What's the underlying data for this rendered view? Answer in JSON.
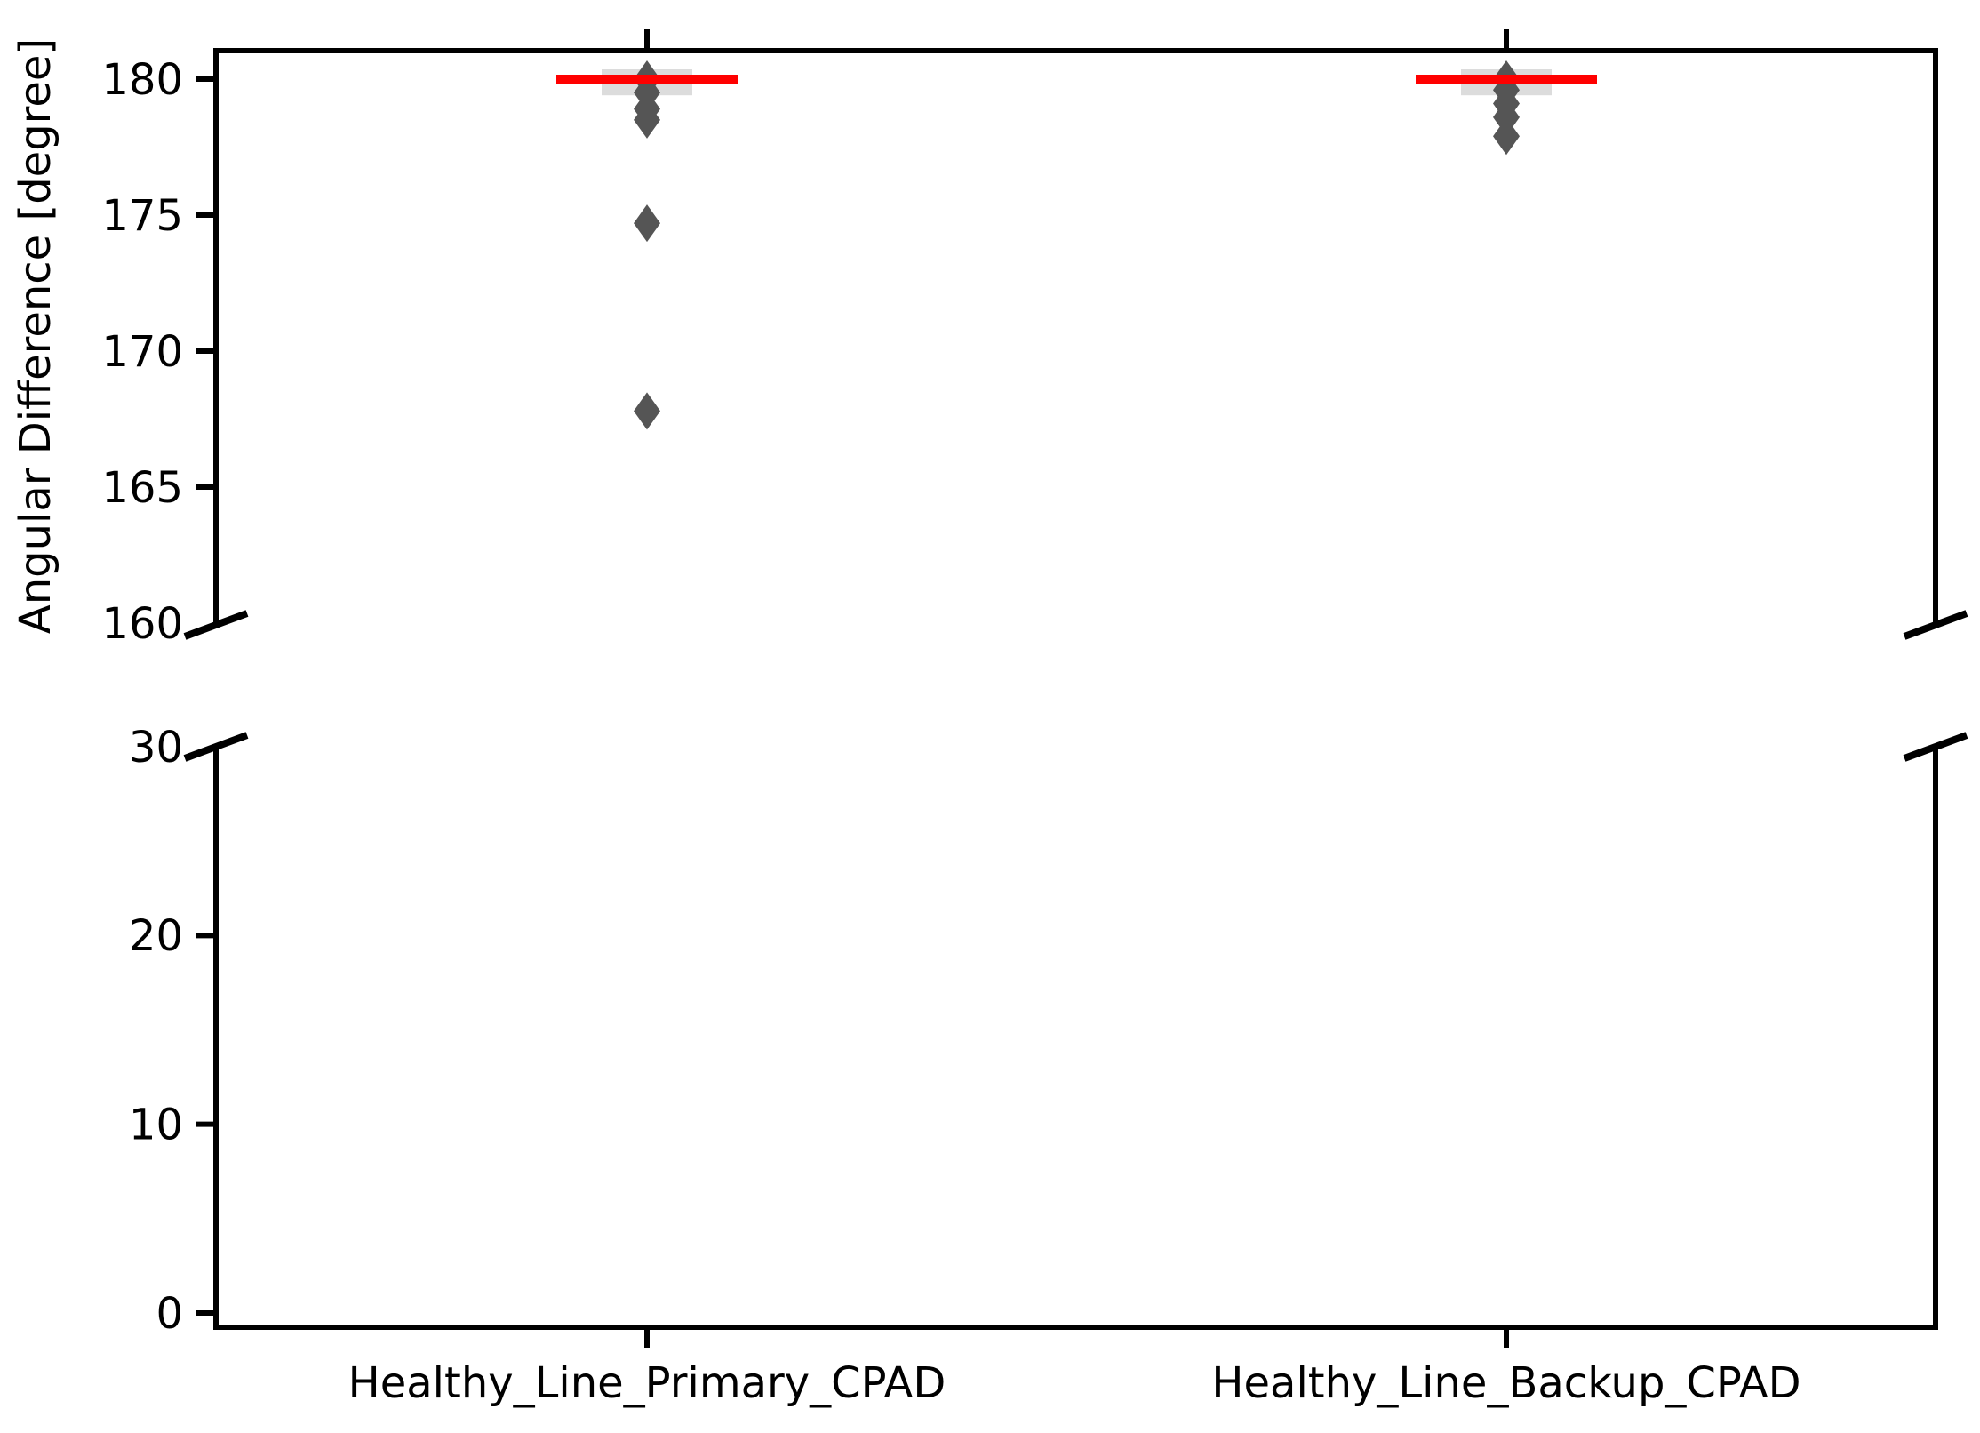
{
  "ylabel": "Angular Difference [degree]",
  "colors": {
    "median_line": "#ff0000",
    "flier_marker": "#555555",
    "box_fill": "#dcdcdc",
    "axis": "#000000",
    "background": "#ffffff"
  },
  "chart_data": {
    "type": "boxplot",
    "broken_y_axis": true,
    "marker_shape": "diamond",
    "grid": false,
    "legend": null,
    "title": "",
    "xlabel": "",
    "ylabel": "Angular Difference [degree]",
    "categories": [
      "Healthy_Line_Primary_CPAD",
      "Healthy_Line_Backup_CPAD"
    ],
    "panels": [
      {
        "position": "top",
        "ylim": [
          160,
          181
        ],
        "yticks": [
          180,
          175,
          170,
          165,
          160
        ],
        "break_tick": 160
      },
      {
        "position": "bottom",
        "ylim": [
          -1,
          30
        ],
        "yticks": [
          30,
          20,
          10,
          0
        ],
        "break_tick": 30
      }
    ],
    "series": [
      {
        "name": "Healthy_Line_Primary_CPAD",
        "median": 180.0,
        "box_low": 179.7,
        "box_high": 180.0,
        "fliers": [
          180.0,
          179.5,
          178.9,
          178.5,
          174.7,
          167.8
        ]
      },
      {
        "name": "Healthy_Line_Backup_CPAD",
        "median": 180.0,
        "box_low": 179.7,
        "box_high": 180.0,
        "fliers": [
          180.0,
          179.6,
          179.1,
          178.6,
          177.9
        ]
      }
    ]
  }
}
